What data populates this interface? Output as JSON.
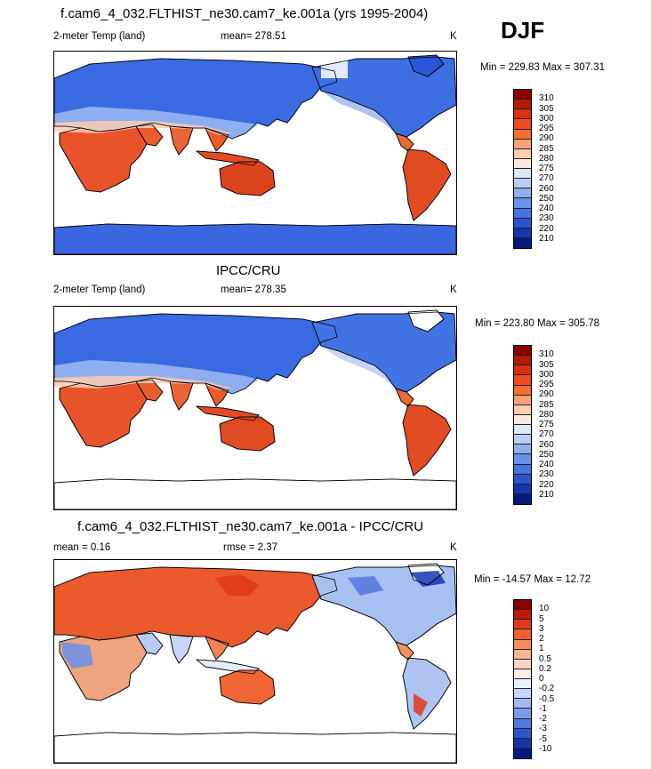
{
  "season": "DJF",
  "panels": [
    {
      "title": "f.cam6_4_032.FLTHIST_ne30.cam7_ke.001a (yrs 1995-2004)",
      "variable": "2-meter Temp (land)",
      "stat_left": "",
      "stat_mid": "mean= 278.51",
      "units": "K",
      "minmax": "Min = 229.83 Max = 307.31",
      "kind": "absolute"
    },
    {
      "title": "IPCC/CRU",
      "variable": "2-meter Temp (land)",
      "stat_left": "",
      "stat_mid": "mean= 278.35",
      "units": "K",
      "minmax": "Min = 223.80 Max = 305.78",
      "kind": "absolute"
    },
    {
      "title": "f.cam6_4_032.FLTHIST_ne30.cam7_ke.001a - IPCC/CRU",
      "variable": "",
      "stat_left": "mean =   0.16",
      "stat_mid": "rmse =   2.37",
      "units": "K",
      "minmax": "Min = -14.57 Max =  12.72",
      "kind": "difference"
    }
  ],
  "colorbars": {
    "absolute": {
      "labels": [
        "310",
        "305",
        "300",
        "295",
        "290",
        "285",
        "280",
        "275",
        "270",
        "260",
        "250",
        "240",
        "230",
        "220",
        "210"
      ],
      "colors": [
        "#8b0000",
        "#b51a00",
        "#d9300e",
        "#ee4d1c",
        "#f5702f",
        "#f9a27a",
        "#fbcdb2",
        "#fde9df",
        "#dde8fb",
        "#b9cff7",
        "#8fb0f0",
        "#6a92ea",
        "#4672e2",
        "#2a52d2",
        "#1535b0",
        "#061a7e"
      ]
    },
    "difference": {
      "labels": [
        "10",
        "5",
        "3",
        "2",
        "1",
        "0.5",
        "0.2",
        "0",
        "-0.2",
        "-0.5",
        "-1",
        "-2",
        "-3",
        "-5",
        "-10"
      ],
      "colors": [
        "#8b0000",
        "#c0160a",
        "#e03a17",
        "#f0602a",
        "#f78d5c",
        "#fab593",
        "#fcd4bf",
        "#fef0e8",
        "#e8eefc",
        "#c7d6f7",
        "#9fb9f1",
        "#7a9bea",
        "#5378e0",
        "#2e55cf",
        "#1535b0",
        "#061a7e"
      ]
    }
  }
}
